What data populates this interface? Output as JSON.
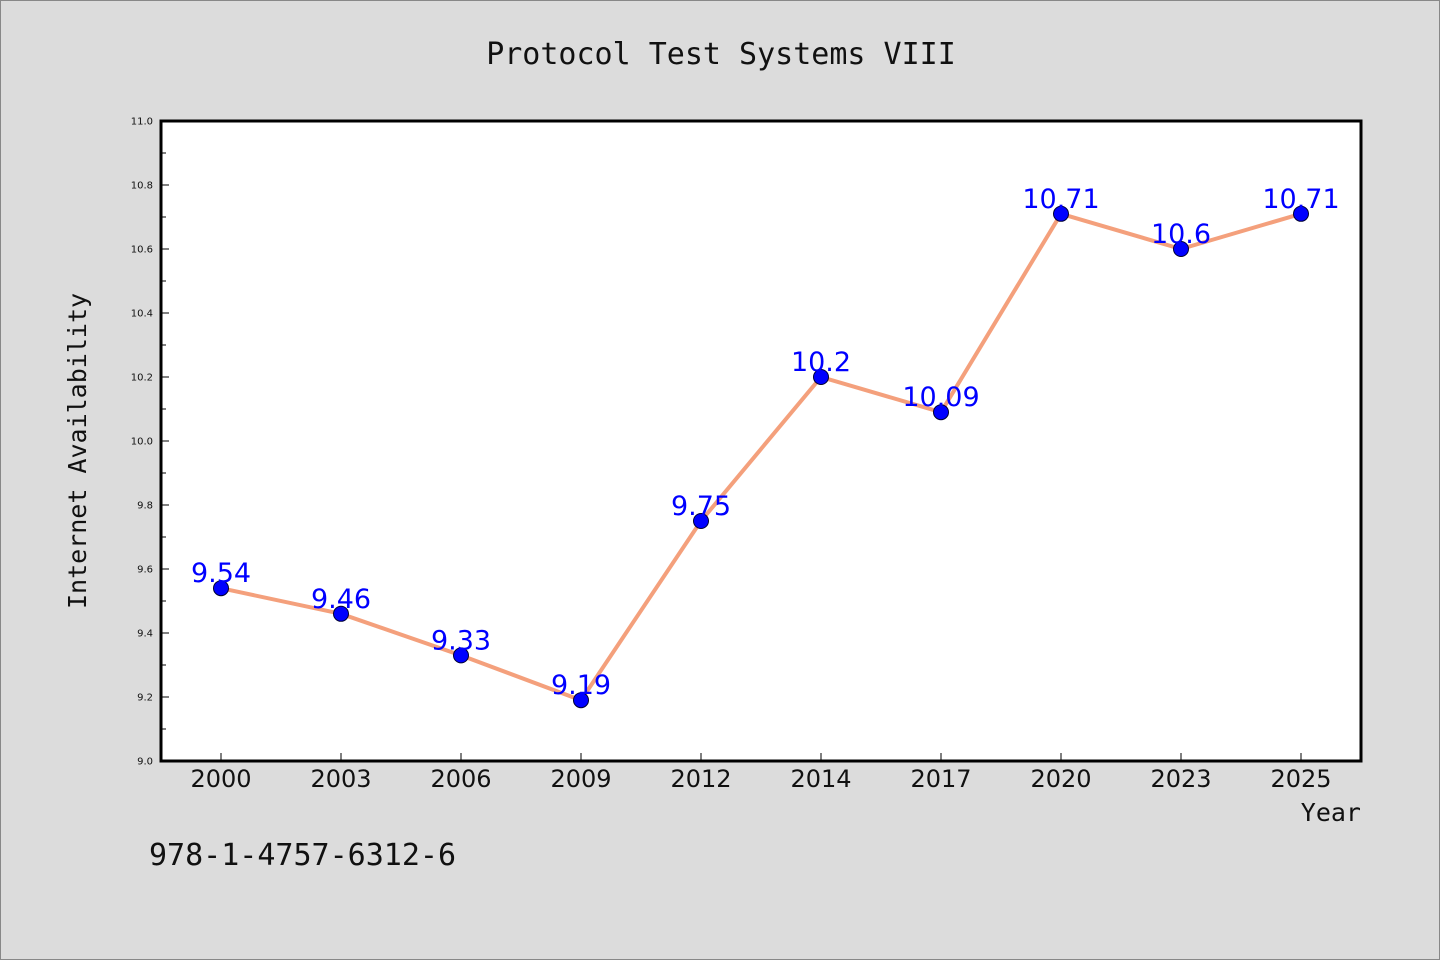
{
  "chart_data": {
    "type": "line",
    "title": "Protocol Test Systems VIII",
    "xlabel": "Year",
    "ylabel": "Internet Availability",
    "categories": [
      "2000",
      "2003",
      "2006",
      "2009",
      "2012",
      "2014",
      "2017",
      "2020",
      "2023",
      "2025"
    ],
    "series": [
      {
        "values": [
          9.54,
          9.46,
          9.33,
          9.19,
          9.75,
          10.2,
          10.09,
          10.71,
          10.6,
          10.71
        ],
        "data_labels": [
          "9.54",
          "9.46",
          "9.33",
          "9.19",
          "9.75",
          "10.2",
          "10.09",
          "10.71",
          "10.6",
          "10.71"
        ],
        "line_color": "#f4a07c",
        "marker_color": "#0000ff"
      }
    ],
    "ylim": [
      9.0,
      11.0
    ],
    "yticks": [
      "9.0",
      "9.2",
      "9.4",
      "9.6",
      "9.8",
      "10.0",
      "10.2",
      "10.4",
      "10.6",
      "10.8",
      "11.0"
    ],
    "grid": false,
    "legend": "none"
  },
  "footer_text": "978-1-4757-6312-6",
  "colors": {
    "background": "#dcdcdc",
    "plot_background": "#ffffff",
    "line": "#f4a07c",
    "marker": "#0000ff",
    "data_label": "#0000ff"
  }
}
